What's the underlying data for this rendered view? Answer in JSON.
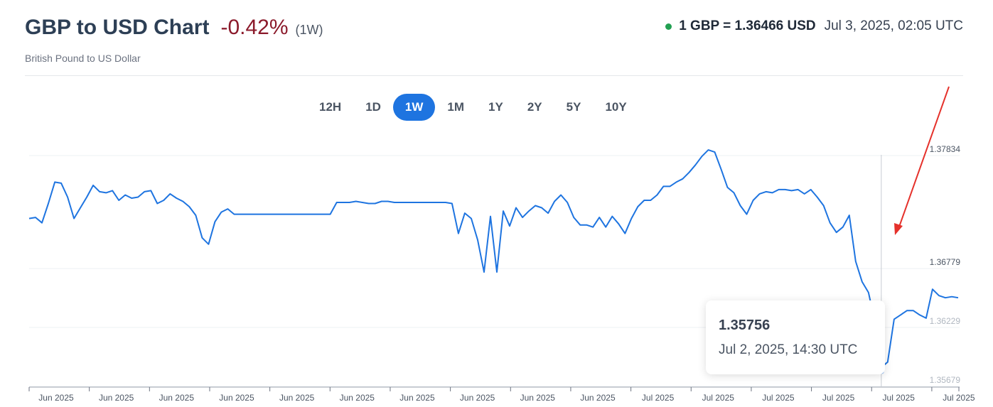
{
  "header": {
    "title": "GBP to USD Chart",
    "change": "-0.42%",
    "period": "(1W)",
    "subtitle": "British Pound to US Dollar",
    "rate": "1 GBP = 1.36466 USD",
    "timestamp": "Jul 3, 2025, 02:05 UTC"
  },
  "colors": {
    "line": "#1e74e0",
    "accent": "#1e74e0",
    "negative": "#8b1a2b",
    "live_dot": "#22a052",
    "arrow": "#e5312b"
  },
  "ranges": [
    {
      "label": "12H",
      "active": false
    },
    {
      "label": "1D",
      "active": false
    },
    {
      "label": "1W",
      "active": true
    },
    {
      "label": "1M",
      "active": false
    },
    {
      "label": "1Y",
      "active": false
    },
    {
      "label": "2Y",
      "active": false
    },
    {
      "label": "5Y",
      "active": false
    },
    {
      "label": "10Y",
      "active": false
    }
  ],
  "tooltip": {
    "value": "1.35756",
    "time": "Jul 2, 2025, 14:30 UTC"
  },
  "chart_data": {
    "type": "line",
    "series": [
      {
        "values": [
          1.3718,
          1.3719,
          1.3714,
          1.3732,
          1.3752,
          1.3751,
          1.3738,
          1.3718,
          1.3728,
          1.3738,
          1.3749,
          1.3743,
          1.3742,
          1.3744,
          1.3735,
          1.374,
          1.3737,
          1.3738,
          1.3743,
          1.3744,
          1.3732,
          1.3735,
          1.3741,
          1.3737,
          1.3734,
          1.3729,
          1.3721,
          1.37,
          1.3694,
          1.3715,
          1.3724,
          1.3727,
          1.3722,
          1.3722,
          1.3722,
          1.3722,
          1.3722,
          1.3722,
          1.3722,
          1.3722,
          1.3722,
          1.3722,
          1.3722,
          1.3722,
          1.3722,
          1.3722,
          1.3722,
          1.3722,
          1.3733,
          1.3733,
          1.3733,
          1.3734,
          1.3733,
          1.3732,
          1.3732,
          1.3734,
          1.3734,
          1.3733,
          1.3733,
          1.3733,
          1.3733,
          1.3733,
          1.3733,
          1.3733,
          1.3733,
          1.3733,
          1.3732,
          1.3704,
          1.3723,
          1.3718,
          1.3698,
          1.3668,
          1.372,
          1.3668,
          1.3725,
          1.3711,
          1.3728,
          1.3719,
          1.3725,
          1.373,
          1.3728,
          1.3723,
          1.3734,
          1.374,
          1.3733,
          1.3719,
          1.3712,
          1.3712,
          1.371,
          1.3719,
          1.371,
          1.372,
          1.3713,
          1.3704,
          1.3718,
          1.3729,
          1.3735,
          1.3735,
          1.374,
          1.3748,
          1.3748,
          1.3752,
          1.3755,
          1.3761,
          1.3768,
          1.3776,
          1.3782,
          1.378,
          1.3764,
          1.3747,
          1.3742,
          1.373,
          1.3722,
          1.3735,
          1.3741,
          1.3743,
          1.3742,
          1.3745,
          1.3745,
          1.3744,
          1.3745,
          1.3741,
          1.3745,
          1.3738,
          1.373,
          1.3714,
          1.3705,
          1.371,
          1.3721,
          1.3678,
          1.3659,
          1.3649,
          1.3622,
          1.3579,
          1.3584,
          1.3624,
          1.3628,
          1.3632,
          1.3632,
          1.3628,
          1.3625,
          1.3652,
          1.3646,
          1.3644,
          1.3645,
          1.3644
        ],
        "tooltip_point": {
          "x": "Jul 2, 2025, 14:30 UTC",
          "y": 1.35756
        }
      }
    ],
    "x_ticks": [
      "Jun 2025",
      "Jun 2025",
      "Jun 2025",
      "Jun 2025",
      "Jun 2025",
      "Jun 2025",
      "Jun 2025",
      "Jun 2025",
      "Jun 2025",
      "Jun 2025",
      "Jul 2025",
      "Jul 2025",
      "Jul 2025",
      "Jul 2025",
      "Jul 2025",
      "Jul 2025"
    ],
    "y_ticks": [
      {
        "value": 1.37834,
        "label": "1.37834"
      },
      {
        "value": 1.36779,
        "label": "1.36779"
      },
      {
        "value": 1.36229,
        "label": "1.36229"
      },
      {
        "value": 1.35679,
        "label": "1.35679"
      }
    ],
    "ylim": [
      1.35679,
      1.37834
    ],
    "grid": true
  }
}
